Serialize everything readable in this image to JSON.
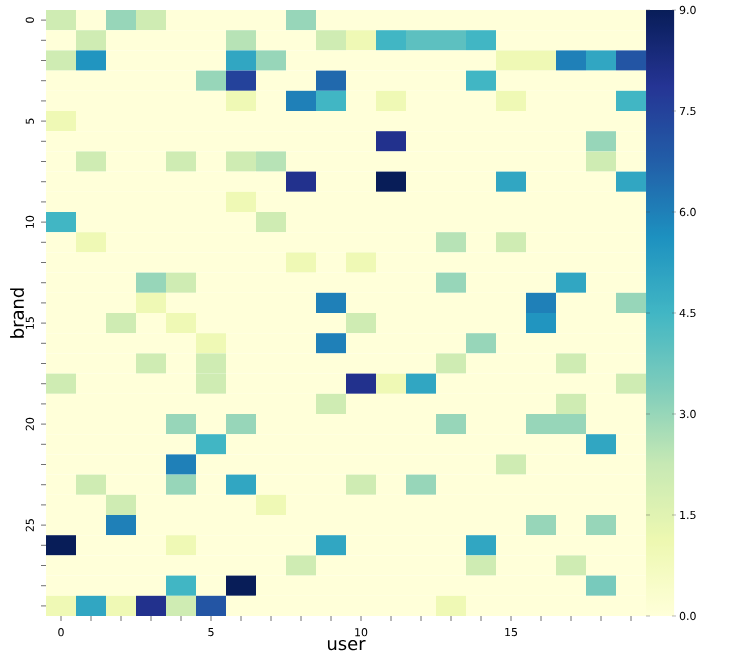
{
  "chart_data": {
    "type": "heatmap",
    "xlabel": "user",
    "ylabel": "brand",
    "categories": [
      "0",
      null,
      null,
      null,
      null,
      "5",
      null,
      null,
      null,
      null,
      "10",
      null,
      null,
      null,
      null,
      "15",
      null,
      null,
      null,
      null
    ],
    "y_categories": [
      "0",
      null,
      null,
      null,
      null,
      "5",
      null,
      null,
      null,
      null,
      "10",
      null,
      null,
      null,
      null,
      "15",
      null,
      null,
      null,
      null,
      "20",
      null,
      null,
      null,
      null,
      "25",
      null,
      null,
      null,
      null
    ],
    "cells": [
      [
        2,
        0,
        3,
        2,
        0,
        0,
        0,
        0,
        3,
        0,
        0,
        0,
        0,
        0,
        0,
        0,
        0,
        0,
        0,
        0
      ],
      [
        0,
        2,
        0,
        0,
        0,
        0,
        2.5,
        0,
        0,
        2,
        1,
        4.5,
        4,
        4,
        4.5,
        0,
        0,
        0,
        0,
        0
      ],
      [
        2,
        5.5,
        0,
        0,
        0,
        0,
        5,
        3,
        0,
        0,
        0,
        0,
        0,
        0,
        0,
        1,
        1,
        6,
        5,
        7
      ],
      [
        0,
        0,
        0,
        0,
        0,
        3,
        7.5,
        0,
        0,
        6.5,
        0,
        0,
        0,
        0,
        4.5,
        0,
        0,
        0,
        0,
        0
      ],
      [
        0,
        0,
        0,
        0,
        0,
        0,
        1,
        0,
        6,
        4.5,
        0,
        1,
        0,
        0,
        0,
        1,
        0,
        0,
        0,
        4.5
      ],
      [
        1,
        0,
        0,
        0,
        0,
        0,
        0,
        0,
        0,
        0,
        0,
        0,
        0,
        0,
        0,
        0,
        0,
        0,
        0,
        0
      ],
      [
        0,
        0,
        0,
        0,
        0,
        0,
        0,
        0,
        0,
        0,
        0,
        8,
        0,
        0,
        0,
        0,
        0,
        0,
        3,
        0
      ],
      [
        0,
        2,
        0,
        0,
        2,
        0,
        2,
        2.5,
        0,
        0,
        0,
        0,
        0,
        0,
        0,
        0,
        0,
        0,
        2,
        0
      ],
      [
        0,
        0,
        0,
        0,
        0,
        0,
        0,
        0,
        8,
        0,
        0,
        9,
        0,
        0,
        0,
        5,
        0,
        0,
        0,
        5
      ],
      [
        0,
        0,
        0,
        0,
        0,
        0,
        1,
        0,
        0,
        0,
        0,
        0,
        0,
        0,
        0,
        0,
        0,
        0,
        0,
        0
      ],
      [
        4.5,
        0,
        0,
        0,
        0,
        0,
        0,
        2,
        0,
        0,
        0,
        0,
        0,
        0,
        0,
        0,
        0,
        0,
        0,
        0
      ],
      [
        0,
        1,
        0,
        0,
        0,
        0,
        0,
        0,
        0,
        0,
        0,
        0,
        0,
        2.5,
        0,
        2,
        0,
        0,
        0,
        0
      ],
      [
        0,
        0,
        0,
        0,
        0,
        0,
        0,
        0,
        1,
        0,
        1,
        0,
        0,
        0,
        0,
        0,
        0,
        0,
        0,
        0
      ],
      [
        0,
        0,
        0,
        3,
        2,
        0,
        0,
        0,
        0,
        0,
        0,
        0,
        0,
        3,
        0,
        0,
        0,
        5,
        0,
        0
      ],
      [
        0,
        0,
        0,
        1,
        0,
        0,
        0,
        0,
        0,
        6,
        0,
        0,
        0,
        0,
        0,
        0,
        6,
        0,
        0,
        3
      ],
      [
        0,
        0,
        2,
        0,
        1,
        0,
        0,
        0,
        0,
        0,
        2,
        0,
        0,
        0,
        0,
        0,
        5.5,
        0,
        0,
        0
      ],
      [
        0,
        0,
        0,
        0,
        0,
        1,
        0,
        0,
        0,
        6,
        0,
        0,
        0,
        0,
        3,
        0,
        0,
        0,
        0,
        0
      ],
      [
        0,
        0,
        0,
        2,
        0,
        2,
        0,
        0,
        0,
        0,
        0,
        0,
        0,
        2,
        0,
        0,
        0,
        2,
        0,
        0
      ],
      [
        2,
        0,
        0,
        0,
        0,
        2,
        0,
        0,
        0,
        0,
        8,
        1,
        5,
        0,
        0,
        0,
        0,
        0,
        0,
        2
      ],
      [
        0,
        0,
        0,
        0,
        0,
        0,
        0,
        0,
        0,
        2,
        0,
        0,
        0,
        0,
        0,
        0,
        0,
        2,
        0,
        0
      ],
      [
        0,
        0,
        0,
        0,
        3,
        0,
        3,
        0,
        0,
        0,
        0,
        0,
        0,
        3,
        0,
        0,
        3,
        3,
        0,
        0
      ],
      [
        0,
        0,
        0,
        0,
        0,
        4.5,
        0,
        0,
        0,
        0,
        0,
        0,
        0,
        0,
        0,
        0,
        0,
        0,
        5,
        0
      ],
      [
        0,
        0,
        0,
        0,
        6,
        0,
        0,
        0,
        0,
        0,
        0,
        0,
        0,
        0,
        0,
        2,
        0,
        0,
        0,
        0
      ],
      [
        0,
        2,
        0,
        0,
        3,
        0,
        5,
        0,
        0,
        0,
        2,
        0,
        3,
        0,
        0,
        0,
        0,
        0,
        0,
        0
      ],
      [
        0,
        0,
        2,
        0,
        0,
        0,
        0,
        1,
        0,
        0,
        0,
        0,
        0,
        0,
        0,
        0,
        0,
        0,
        0,
        0
      ],
      [
        0,
        0,
        6,
        0,
        0,
        0,
        0,
        0,
        0,
        0,
        0,
        0,
        0,
        0,
        0,
        0,
        3,
        0,
        3,
        0
      ],
      [
        9,
        0,
        0,
        0,
        1,
        0,
        0,
        0,
        0,
        5,
        0,
        0,
        0,
        0,
        5,
        0,
        0,
        0,
        0,
        0
      ],
      [
        0,
        0,
        0,
        0,
        0,
        0,
        0,
        0,
        2,
        0,
        0,
        0,
        0,
        0,
        2,
        0,
        0,
        2,
        0,
        0
      ],
      [
        0,
        0,
        0,
        0,
        4.5,
        0,
        9,
        0,
        0,
        0,
        0,
        0,
        0,
        0,
        0,
        0,
        0,
        0,
        3.5,
        0
      ],
      [
        1,
        5,
        1,
        8,
        2,
        7,
        0,
        0,
        0,
        0,
        0,
        0,
        0,
        1,
        0,
        0,
        0,
        0,
        0,
        0
      ]
    ],
    "clim": [
      0,
      9
    ],
    "cticks": [
      {
        "value": 0,
        "label": "0.0"
      },
      {
        "value": 1.5,
        "label": "1.5"
      },
      {
        "value": 3,
        "label": "3.0"
      },
      {
        "value": 4.5,
        "label": "4.5"
      },
      {
        "value": 6,
        "label": "6.0"
      },
      {
        "value": 7.5,
        "label": "7.5"
      },
      {
        "value": 9,
        "label": "9.0"
      }
    ]
  }
}
